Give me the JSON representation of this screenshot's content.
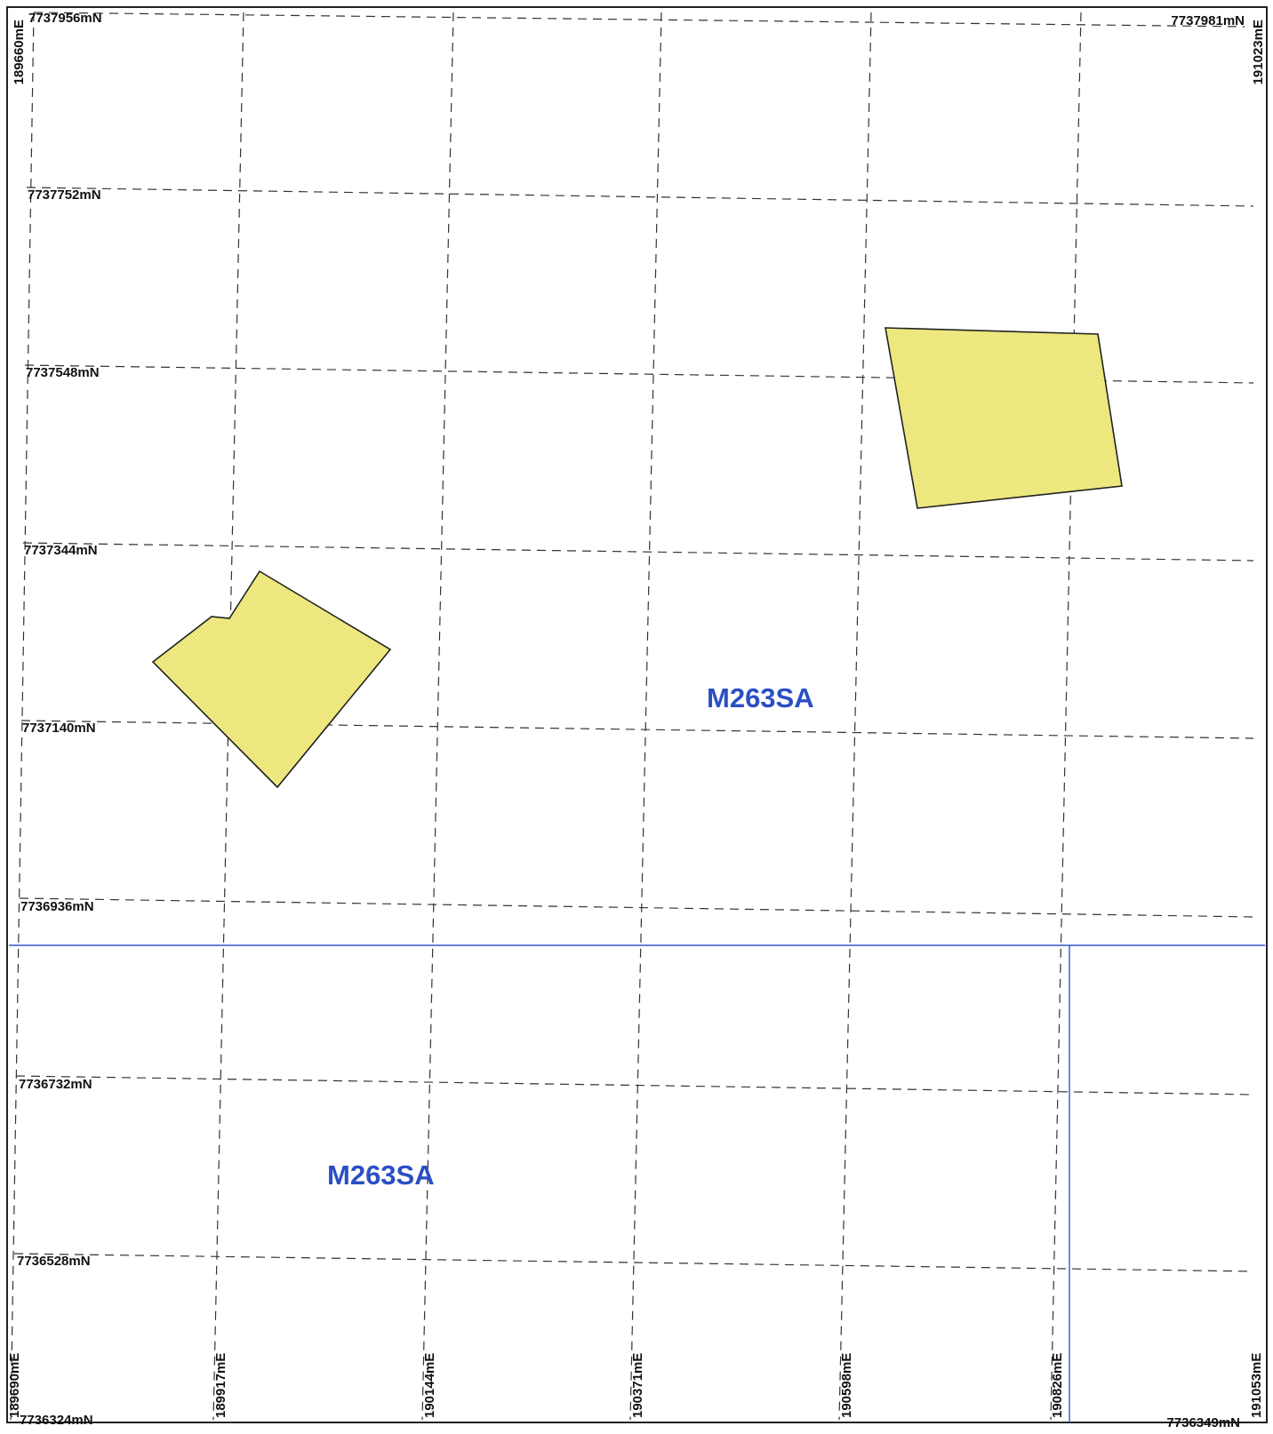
{
  "map": {
    "colors": {
      "frame": "#222222",
      "grid": "#333333",
      "polygon_fill": "#f3f08a",
      "polygon_hatch": "#e2d96a",
      "polygon_stroke": "#222222",
      "boundary": "#3556c8",
      "label": "#2a4fc4"
    },
    "corner_labels": {
      "top_left_n": "7737956mN",
      "top_right_n": "7737981mN",
      "bottom_left_n": "7736324mN",
      "bottom_right_n": "7736349mN",
      "top_left_e": "189660mE",
      "top_right_e": "191023mE"
    },
    "northing_labels": [
      "7737752mN",
      "7737548mN",
      "7737344mN",
      "7737140mN",
      "7736936mN",
      "7736732mN",
      "7736528mN"
    ],
    "easting_labels": [
      "189690mE",
      "189917mE",
      "190144mE",
      "190371mE",
      "190598mE",
      "190826mE",
      "191053mE"
    ],
    "tenement_labels": [
      "M263SA",
      "M263SA"
    ],
    "blocks": [
      {
        "id": "block-1",
        "description": ""
      },
      {
        "id": "block-2",
        "description": ""
      }
    ]
  }
}
